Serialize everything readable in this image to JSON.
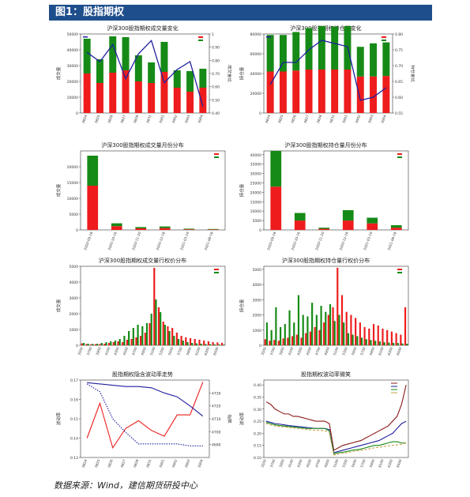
{
  "header": {
    "title": "图1：股指期权"
  },
  "footer": {
    "source": "数据来源：Wind，建信期货研投中心"
  },
  "colors": {
    "red": "#ee1c1c",
    "green": "#168a16",
    "blue": "#1f1f9e",
    "header_bg": "#1f4e8c"
  },
  "chart_data": [
    {
      "id": "c1",
      "type": "bar",
      "title": "沪深300股指期权成交量变化",
      "ylabel": "成交量",
      "y2label": "成交量比",
      "ylim": [
        0,
        50000
      ],
      "yticks": [
        0,
        10000,
        20000,
        30000,
        40000,
        50000
      ],
      "y2lim": [
        0.4,
        1.0
      ],
      "y2ticks": [
        0.4,
        0.5,
        0.6,
        0.7,
        0.8,
        0.9,
        1.0
      ],
      "categories": [
        "0824",
        "0825",
        "0826",
        "0827",
        "0828",
        "0831",
        "0901",
        "0902",
        "0903",
        "0904"
      ],
      "series": [
        {
          "name": "",
          "color": "red",
          "values": [
            25000,
            19000,
            25500,
            27000,
            20000,
            19000,
            26000,
            16000,
            13500,
            16000
          ]
        },
        {
          "name": "",
          "color": "green",
          "values": [
            22000,
            15000,
            23000,
            21000,
            16500,
            13000,
            19000,
            11000,
            13000,
            12000
          ]
        }
      ],
      "line": {
        "name": "",
        "color": "blue",
        "values": [
          0.86,
          0.79,
          0.92,
          0.66,
          0.85,
          0.95,
          0.63,
          0.73,
          0.79,
          0.45
        ]
      }
    },
    {
      "id": "c2",
      "type": "bar",
      "title": "沪深300股指期权持仓量变化",
      "ylabel": "持仓量",
      "y2label": "持仓量比",
      "ylim": [
        0,
        80000
      ],
      "yticks": [
        0,
        20000,
        40000,
        60000,
        80000
      ],
      "y2lim": [
        0.55,
        0.8
      ],
      "y2ticks": [
        0.55,
        0.6,
        0.65,
        0.7,
        0.75,
        0.8
      ],
      "categories": [
        "0824",
        "0825",
        "0826",
        "0827",
        "0828",
        "0831",
        "0901",
        "0902",
        "0903",
        "0904"
      ],
      "series": [
        {
          "name": "",
          "color": "red",
          "values": [
            42000,
            42000,
            43000,
            44000,
            44000,
            44000,
            44000,
            37000,
            37000,
            37500
          ]
        },
        {
          "name": "",
          "color": "green",
          "values": [
            37000,
            37000,
            39000,
            42000,
            44000,
            43500,
            44000,
            30000,
            33500,
            34000
          ]
        }
      ],
      "line": {
        "name": "",
        "color": "blue",
        "values": [
          0.64,
          0.71,
          0.71,
          0.75,
          0.78,
          0.77,
          0.76,
          0.59,
          0.6,
          0.63
        ]
      }
    },
    {
      "id": "c3",
      "type": "bar",
      "title": "沪深300股指期权成交量月份分布",
      "ylabel": "成交量",
      "ylim": [
        0,
        25000
      ],
      "yticks": [
        0,
        5000,
        10000,
        15000,
        20000
      ],
      "categories": [
        "2020-09-18",
        "2020-10-16",
        "2020-11-20",
        "2020-12-18",
        "2021-03-19",
        "2021-06-18"
      ],
      "series": [
        {
          "name": "",
          "color": "red",
          "values": [
            14000,
            1200,
            500,
            600,
            200,
            150
          ]
        },
        {
          "name": "",
          "color": "green",
          "values": [
            9500,
            900,
            400,
            500,
            200,
            150
          ]
        }
      ]
    },
    {
      "id": "c4",
      "type": "bar",
      "title": "沪深300股指期权持仓量月份分布",
      "ylabel": "持仓量",
      "ylim": [
        0,
        42000
      ],
      "yticks": [
        0,
        5000,
        10000,
        15000,
        20000,
        25000,
        30000,
        35000,
        40000
      ],
      "categories": [
        "2020-09-18",
        "2020-10-16",
        "2020-11-20",
        "2020-12-18",
        "2021-03-19",
        "2021-06-18"
      ],
      "series": [
        {
          "name": "",
          "color": "red",
          "values": [
            23000,
            5000,
            600,
            5000,
            3500,
            1200
          ]
        },
        {
          "name": "",
          "color": "green",
          "values": [
            19000,
            4000,
            600,
            5500,
            3000,
            1300
          ]
        }
      ]
    },
    {
      "id": "c5",
      "type": "bar",
      "title": "沪深300股指期权成交量行权价分布",
      "ylabel": "成交量",
      "ylim": [
        0,
        5000
      ],
      "yticks": [
        0,
        1000,
        2000,
        3000,
        4000,
        5000
      ],
      "categories": [
        "3500",
        "3600",
        "3700",
        "3800",
        "3900",
        "4000",
        "4100",
        "4200",
        "4300",
        "4400",
        "4500",
        "4600",
        "4700",
        "4800",
        "4900",
        "5000",
        "5100",
        "5200",
        "5300",
        "5400",
        "5500",
        "5600",
        "5700",
        "5800",
        "5900",
        "6000",
        "6100",
        "6200",
        "6300",
        "6400",
        "6500",
        "6600"
      ],
      "series": [
        {
          "name": "",
          "color": "red",
          "values": [
            120,
            80,
            60,
            70,
            90,
            100,
            150,
            200,
            250,
            200,
            350,
            400,
            500,
            600,
            800,
            1400,
            4900,
            2400,
            1500,
            1200,
            1100,
            800,
            600,
            500,
            450,
            400,
            350,
            300,
            250,
            200,
            180,
            160
          ]
        },
        {
          "name": "",
          "color": "green",
          "values": [
            150,
            100,
            90,
            100,
            150,
            200,
            250,
            300,
            400,
            600,
            900,
            1100,
            1300,
            1200,
            1400,
            2000,
            2900,
            2100,
            1300,
            900,
            600,
            400,
            300,
            200,
            150,
            120,
            100,
            80,
            70,
            60,
            50,
            40
          ]
        }
      ]
    },
    {
      "id": "c6",
      "type": "bar",
      "title": "沪深300股指期权持仓量行权价分布",
      "ylabel": "持仓量",
      "ylim": [
        0,
        5200
      ],
      "yticks": [
        0,
        1000,
        2000,
        3000,
        4000,
        5000
      ],
      "categories": [
        "3500",
        "3600",
        "3700",
        "3800",
        "3900",
        "4000",
        "4100",
        "4200",
        "4300",
        "4400",
        "4500",
        "4600",
        "4700",
        "4800",
        "4900",
        "5000",
        "5100",
        "5200",
        "5300",
        "5400",
        "5500",
        "5600",
        "5700",
        "5800",
        "5900",
        "6000",
        "6100",
        "6200",
        "6300",
        "6400",
        "6500",
        "6600"
      ],
      "series": [
        {
          "name": "",
          "color": "red",
          "values": [
            400,
            300,
            350,
            300,
            450,
            500,
            600,
            700,
            500,
            800,
            900,
            1200,
            1000,
            1500,
            2000,
            2500,
            5100,
            3300,
            2200,
            2000,
            1800,
            1500,
            1200,
            1100,
            1400,
            1300,
            1100,
            1000,
            900,
            800,
            700,
            2500
          ]
        },
        {
          "name": "",
          "color": "green",
          "values": [
            1500,
            1000,
            2500,
            1200,
            1400,
            2300,
            1500,
            3300,
            2000,
            1900,
            2800,
            2000,
            2600,
            2200,
            2700,
            1600,
            2000,
            1500,
            800,
            700,
            600,
            500,
            400,
            350,
            300,
            250,
            200,
            180,
            160,
            150,
            120,
            100
          ]
        }
      ]
    },
    {
      "id": "c7",
      "type": "line",
      "title": "股指期权隐含波动率走势",
      "ylabel": "波动率",
      "y2label": "指数",
      "ylim": [
        0.13,
        0.17
      ],
      "yticks": [
        0.13,
        0.14,
        0.15,
        0.16,
        0.17
      ],
      "y2lim": [
        4680,
        4740
      ],
      "y2ticks": [
        4690,
        4700,
        4710,
        4720,
        4730
      ],
      "categories": [
        "0824",
        "0825",
        "0826",
        "0827",
        "0828",
        "0831",
        "0901",
        "0902",
        "0903",
        "0904"
      ],
      "series": [
        {
          "name": "",
          "color": "red",
          "style": "solid",
          "axis": "left",
          "values": [
            0.14,
            0.158,
            0.135,
            0.145,
            0.149,
            0.144,
            0.141,
            0.152,
            0.152,
            0.169
          ]
        },
        {
          "name": "",
          "color": "blue",
          "style": "dotted",
          "axis": "left",
          "values": [
            0.168,
            0.164,
            0.15,
            0.143,
            0.137,
            0.137,
            0.137,
            0.137,
            0.136,
            0.136
          ]
        },
        {
          "name": "",
          "color": "blue",
          "style": "solid",
          "axis": "right",
          "values": [
            4738,
            4737,
            4736,
            4735,
            4735,
            4734,
            4730,
            4727,
            4720,
            4712
          ]
        }
      ]
    },
    {
      "id": "c8",
      "type": "line",
      "title": "股指期权波动率微笑",
      "ylabel": "波动率",
      "ylim": [
        0.1,
        0.42
      ],
      "yticks": [
        0.1,
        0.15,
        0.2,
        0.25,
        0.3,
        0.35,
        0.4
      ],
      "categories": [
        "3500",
        "3600",
        "3700",
        "3800",
        "3900",
        "4000",
        "4100",
        "4200",
        "4300",
        "4400",
        "4500",
        "4600",
        "4700",
        "4800",
        "4900",
        "5000",
        "5100",
        "5200",
        "5300",
        "5400",
        "5500",
        "5600",
        "5700",
        "5800",
        "5900",
        "6000",
        "6100",
        "6200",
        "6300",
        "6400",
        "6500",
        "6600"
      ],
      "series": [
        {
          "name": "",
          "color": "#8b1a1a",
          "style": "solid",
          "values": [
            0.33,
            0.32,
            0.3,
            0.29,
            0.28,
            0.28,
            0.27,
            0.27,
            0.265,
            0.26,
            0.255,
            0.25,
            0.25,
            0.25,
            0.24,
            0.13,
            0.14,
            0.15,
            0.155,
            0.16,
            0.165,
            0.17,
            0.18,
            0.19,
            0.2,
            0.21,
            0.22,
            0.23,
            0.25,
            0.27,
            0.32,
            0.4
          ]
        },
        {
          "name": "",
          "color": "#1f1f9e",
          "style": "solid",
          "values": [
            0.25,
            0.245,
            0.24,
            0.238,
            0.235,
            0.232,
            0.23,
            0.228,
            0.226,
            0.224,
            0.222,
            0.22,
            0.22,
            0.22,
            0.215,
            0.12,
            0.125,
            0.13,
            0.135,
            0.14,
            0.145,
            0.15,
            0.155,
            0.16,
            0.165,
            0.17,
            0.18,
            0.19,
            0.2,
            0.22,
            0.24,
            0.25
          ]
        },
        {
          "name": "",
          "color": "#168a16",
          "style": "solid",
          "values": [
            0.245,
            0.24,
            0.235,
            0.232,
            0.23,
            0.228,
            0.226,
            0.224,
            0.222,
            0.22,
            0.22,
            0.22,
            0.22,
            0.22,
            0.21,
            0.115,
            0.12,
            0.122,
            0.125,
            0.13,
            0.132,
            0.135,
            0.14,
            0.145,
            0.15,
            0.15,
            0.155,
            0.16,
            0.165,
            0.165,
            0.16,
            0.16
          ]
        },
        {
          "name": "",
          "color": "#c9a24a",
          "style": "dashed",
          "values": [
            0.24,
            0.235,
            0.23,
            0.228,
            0.226,
            0.224,
            0.222,
            0.22,
            0.218,
            0.216,
            0.214,
            0.212,
            0.212,
            0.21,
            0.205,
            0.11,
            0.115,
            0.118,
            0.12,
            0.124,
            0.127,
            0.13,
            0.133,
            0.136,
            0.14,
            0.142,
            0.145,
            0.148,
            0.15,
            0.152,
            0.155,
            0.16
          ]
        }
      ]
    }
  ]
}
